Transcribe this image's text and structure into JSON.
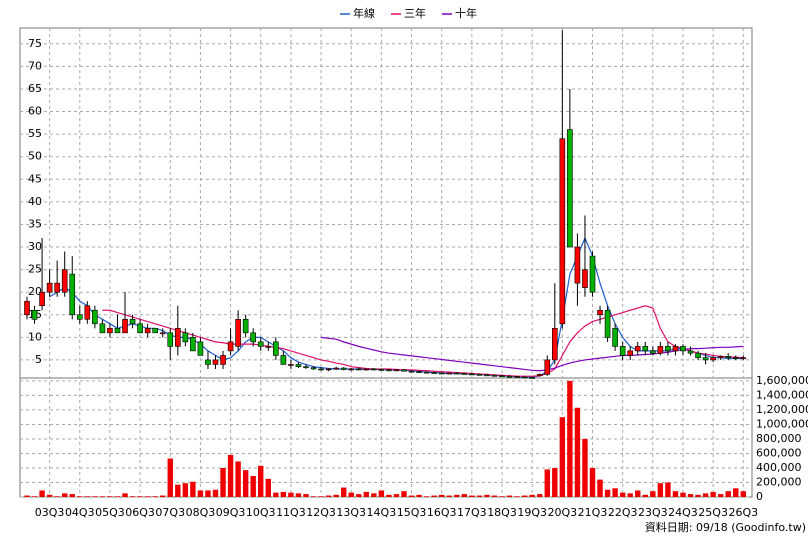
{
  "chart_data": {
    "type": "candlestick",
    "footer": "資料日期: 09/18 (Goodinfo.tw)",
    "categories": [
      null,
      null,
      null,
      "03Q3",
      null,
      null,
      null,
      "04Q3",
      null,
      null,
      null,
      "05Q3",
      null,
      null,
      null,
      "06Q3",
      null,
      null,
      null,
      "07Q3",
      null,
      null,
      null,
      "08Q3",
      null,
      null,
      null,
      "09Q3",
      null,
      null,
      null,
      "10Q3",
      null,
      null,
      null,
      "11Q3",
      null,
      null,
      null,
      "12Q3",
      null,
      null,
      null,
      "13Q3",
      null,
      null,
      null,
      "14Q3",
      null,
      null,
      null,
      "15Q3",
      null,
      null,
      null,
      "16Q3",
      null,
      null,
      null,
      "17Q3",
      null,
      null,
      null,
      "18Q3",
      null,
      null,
      null,
      "19Q3",
      null,
      null,
      null,
      "20Q3",
      null,
      null,
      null,
      "21Q3",
      null,
      null,
      null,
      "22Q3",
      null,
      null,
      null,
      "23Q3",
      null,
      null,
      null,
      "24Q3",
      null,
      null,
      null,
      "25Q3",
      null,
      null,
      null,
      "26Q3"
    ],
    "open": [
      15,
      16,
      17,
      20,
      20,
      20,
      24,
      15,
      14,
      16,
      13,
      11,
      12,
      11,
      14,
      13,
      11,
      12,
      11,
      11,
      8,
      11,
      10,
      9,
      5,
      4,
      4,
      7,
      8,
      14,
      11,
      9,
      8,
      9,
      6,
      4,
      4,
      3.5,
      3.3,
      3,
      2.8,
      3,
      3.2,
      2.9,
      3,
      2.8,
      3,
      2.9,
      2.8,
      2.7,
      2.8,
      2.5,
      2.4,
      2.3,
      2.2,
      2.1,
      2,
      2.1,
      2,
      1.9,
      1.8,
      1.7,
      1.6,
      1.5,
      1.4,
      1.3,
      1.2,
      1.1,
      1.5,
      1.8,
      5,
      13,
      56,
      22,
      21,
      28,
      15,
      16,
      12,
      8,
      6,
      7,
      8,
      7,
      6.5,
      8,
      7,
      8,
      7,
      6.5,
      5.5,
      5,
      5.5,
      5.8,
      5.5,
      5.3
    ],
    "high": [
      19,
      17,
      32,
      25,
      27,
      29,
      28,
      17,
      18,
      17,
      14,
      13,
      15,
      20,
      15,
      14,
      13,
      12,
      12,
      12,
      17,
      12,
      11,
      10,
      7,
      6,
      7,
      12,
      16,
      15,
      12,
      10,
      9,
      10,
      7,
      5,
      4.5,
      4,
      3.6,
      3.4,
      3.2,
      3.5,
      3.4,
      3.2,
      3.3,
      3.1,
      3.2,
      3.1,
      3,
      3,
      3,
      2.7,
      2.6,
      2.5,
      2.4,
      2.3,
      2.2,
      2.3,
      2.2,
      2.1,
      2,
      1.9,
      1.8,
      1.7,
      1.6,
      1.5,
      1.4,
      1.3,
      2,
      6,
      22,
      78,
      65,
      33,
      37,
      29,
      17,
      17,
      13,
      9,
      8,
      9,
      9,
      8,
      9,
      9,
      8.5,
      8.5,
      8,
      7,
      6.5,
      6,
      6,
      6.5,
      6,
      6
    ],
    "low": [
      14,
      13,
      16,
      19,
      19,
      19,
      14,
      13,
      13,
      12,
      11,
      10,
      11,
      11,
      12,
      11,
      10,
      11,
      10,
      5,
      6,
      8,
      7,
      6,
      3,
      3,
      3,
      6,
      7,
      10,
      8,
      7,
      7,
      5,
      4,
      3,
      3.2,
      3,
      2.8,
      2.6,
      2.5,
      2.8,
      2.7,
      2.6,
      2.7,
      2.6,
      2.7,
      2.6,
      2.5,
      2.5,
      2.4,
      2.2,
      2.1,
      2,
      2,
      1.9,
      1.8,
      1.9,
      1.8,
      1.7,
      1.6,
      1.5,
      1.4,
      1.3,
      1.2,
      1.1,
      1,
      0.9,
      1.3,
      1.5,
      4,
      12,
      30,
      17,
      19,
      19,
      13,
      9,
      7,
      5,
      5,
      6,
      6,
      6,
      6,
      6,
      6,
      6,
      6,
      5,
      4,
      4.5,
      5,
      5,
      5,
      5
    ],
    "close": [
      18,
      14,
      20,
      22,
      22,
      25,
      15,
      14,
      17,
      13,
      11,
      12,
      11,
      14,
      13,
      11,
      12,
      11,
      11,
      8,
      12,
      9,
      7,
      6,
      4,
      5,
      6,
      9,
      14,
      11,
      9,
      8,
      8,
      6,
      4,
      4,
      3.5,
      3.3,
      3,
      2.8,
      3,
      3.2,
      2.9,
      3,
      2.8,
      3,
      2.9,
      2.8,
      2.7,
      2.8,
      2.5,
      2.4,
      2.3,
      2.2,
      2.1,
      2,
      2.1,
      2,
      1.9,
      1.8,
      1.7,
      1.6,
      1.5,
      1.4,
      1.3,
      1.2,
      1.1,
      1,
      1.8,
      5,
      12,
      54,
      30,
      30,
      25,
      20,
      16,
      10,
      8,
      6,
      7,
      8,
      7,
      6.5,
      8,
      7,
      8,
      7,
      6.5,
      5.5,
      5,
      5.5,
      5.8,
      5.5,
      5.3,
      5.5
    ],
    "volume": [
      20000,
      10000,
      90000,
      30000,
      10000,
      50000,
      40000,
      10000,
      10000,
      10000,
      10000,
      10000,
      10000,
      50000,
      10000,
      10000,
      10000,
      10000,
      20000,
      530000,
      170000,
      190000,
      210000,
      90000,
      90000,
      100000,
      400000,
      580000,
      490000,
      370000,
      290000,
      430000,
      250000,
      60000,
      70000,
      60000,
      50000,
      40000,
      10000,
      10000,
      20000,
      30000,
      130000,
      60000,
      40000,
      70000,
      50000,
      90000,
      30000,
      40000,
      80000,
      20000,
      30000,
      10000,
      20000,
      30000,
      20000,
      30000,
      40000,
      20000,
      20000,
      30000,
      20000,
      10000,
      20000,
      10000,
      20000,
      30000,
      40000,
      380000,
      400000,
      1100000,
      1600000,
      1230000,
      800000,
      400000,
      240000,
      100000,
      120000,
      60000,
      50000,
      90000,
      30000,
      80000,
      190000,
      200000,
      80000,
      60000,
      40000,
      30000,
      50000,
      70000,
      40000,
      80000,
      120000,
      80000
    ],
    "up_color": "#ff0000",
    "down_color": "#00b000",
    "volume_color": "#ee0000",
    "series": [
      {
        "name": "年線",
        "color": "#1f5fd0",
        "values": [
          null,
          null,
          null,
          19,
          20,
          21,
          20,
          18,
          17,
          15,
          14,
          13,
          12,
          12.5,
          13,
          12.5,
          12,
          12,
          11.5,
          10.5,
          10,
          10,
          9.5,
          8.5,
          7,
          6,
          5,
          5.5,
          7,
          9,
          10,
          10,
          9,
          8,
          7,
          5.5,
          4.5,
          4,
          3.5,
          3.3,
          3.1,
          3,
          3,
          3,
          3,
          2.9,
          2.9,
          2.9,
          2.8,
          2.8,
          2.7,
          2.6,
          2.5,
          2.3,
          2.2,
          2.1,
          2,
          2,
          1.9,
          1.9,
          1.8,
          1.7,
          1.6,
          1.5,
          1.4,
          1.3,
          1.2,
          1.2,
          1.5,
          2.5,
          5,
          14,
          24,
          28,
          32,
          28,
          22,
          17,
          13,
          10,
          8,
          7,
          7,
          7,
          7,
          7,
          7.5,
          7.5,
          7,
          6.5,
          6,
          5.5,
          5.5,
          5.3,
          5.3,
          5.3
        ]
      },
      {
        "name": "三年",
        "color": "#e0106a",
        "values": [
          null,
          null,
          null,
          null,
          null,
          null,
          null,
          null,
          null,
          null,
          16,
          16,
          15.5,
          15,
          14.5,
          14,
          13.5,
          13,
          12.5,
          12,
          11.5,
          11,
          10.5,
          10,
          9.5,
          9,
          8.8,
          8.5,
          8.5,
          8.5,
          8.5,
          8.3,
          8,
          7.8,
          7.5,
          7,
          6.5,
          6,
          5.5,
          5,
          4.7,
          4.3,
          4,
          3.5,
          3.3,
          3.1,
          3,
          3,
          3,
          2.9,
          2.8,
          2.8,
          2.7,
          2.6,
          2.5,
          2.4,
          2.3,
          2.2,
          2.1,
          2,
          1.9,
          1.8,
          1.7,
          1.6,
          1.5,
          1.4,
          1.4,
          1.4,
          1.5,
          2,
          3,
          6,
          9,
          11,
          12.5,
          13.5,
          14,
          14.5,
          15,
          15.5,
          16,
          16.5,
          17,
          16.5,
          12,
          9,
          8,
          7.5,
          7,
          6.5,
          6.3,
          6,
          5.8,
          5.7,
          5.6,
          5.5
        ]
      },
      {
        "name": "十年",
        "color": "#8000c0",
        "values": [
          null,
          null,
          null,
          null,
          null,
          null,
          null,
          null,
          null,
          null,
          null,
          null,
          null,
          null,
          null,
          null,
          null,
          null,
          null,
          null,
          null,
          null,
          null,
          null,
          null,
          null,
          null,
          null,
          null,
          null,
          null,
          null,
          null,
          null,
          null,
          null,
          null,
          null,
          null,
          10,
          9.8,
          9.6,
          9,
          8.5,
          8,
          7.6,
          7.2,
          6.8,
          6.5,
          6.3,
          6.1,
          5.9,
          5.7,
          5.5,
          5.3,
          5.1,
          4.9,
          4.7,
          4.5,
          4.3,
          4.1,
          3.9,
          3.7,
          3.5,
          3.3,
          3.1,
          2.9,
          2.7,
          2.6,
          2.8,
          3.2,
          3.8,
          4.3,
          4.7,
          5,
          5.2,
          5.4,
          5.6,
          5.8,
          6,
          6,
          6.1,
          6.2,
          6.3,
          6.5,
          6.7,
          7,
          7.3,
          7.5,
          7.5,
          7.6,
          7.7,
          7.8,
          7.8,
          7.9,
          8
        ]
      }
    ],
    "ylim": [
      1,
      78.5
    ],
    "yticks": [
      5,
      10,
      15,
      20,
      25,
      30,
      35,
      40,
      45,
      50,
      55,
      60,
      65,
      70,
      75
    ],
    "y2lim": [
      0,
      1640000
    ],
    "y2ticks": [
      0,
      {
        "value": 200000,
        "label": "200,000"
      },
      {
        "value": 400000,
        "label": "400,000"
      },
      {
        "value": 600000,
        "label": "600,000"
      },
      {
        "value": 800000,
        "label": "800,000"
      },
      {
        "value": 1000000,
        "label": "1,000,000"
      },
      {
        "value": 1200000,
        "label": "1,200,000"
      },
      {
        "value": 1400000,
        "label": "1,400,000"
      },
      {
        "value": 1600000,
        "label": "1,600,000"
      }
    ],
    "grid": true
  }
}
